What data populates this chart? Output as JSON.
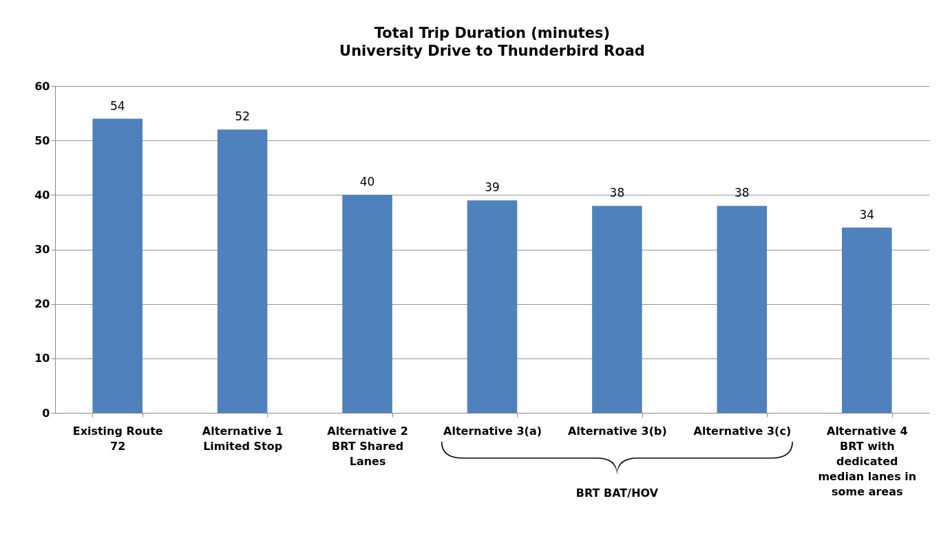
{
  "chart_data": {
    "type": "bar",
    "title": "Total Trip Duration (minutes)\nUniversity Drive to Thunderbird Road",
    "categories": [
      "Existing Route\n72",
      "Alternative 1\nLimited Stop",
      "Alternative 2\nBRT Shared\nLanes",
      "Alternative 3(a)",
      "Alternative 3(b)",
      "Alternative 3(c)",
      "Alternative 4\nBRT with\ndedicated\nmedian lanes in\nsome areas"
    ],
    "values": [
      54,
      52,
      40,
      39,
      38,
      38,
      34
    ],
    "color": "#4f81bd",
    "ylim": [
      0,
      60
    ],
    "yticks": [
      0,
      10,
      20,
      30,
      40,
      50,
      60
    ],
    "grid": "y",
    "data_labels": true,
    "annotations": [
      "BRT BAT/HOV"
    ]
  }
}
